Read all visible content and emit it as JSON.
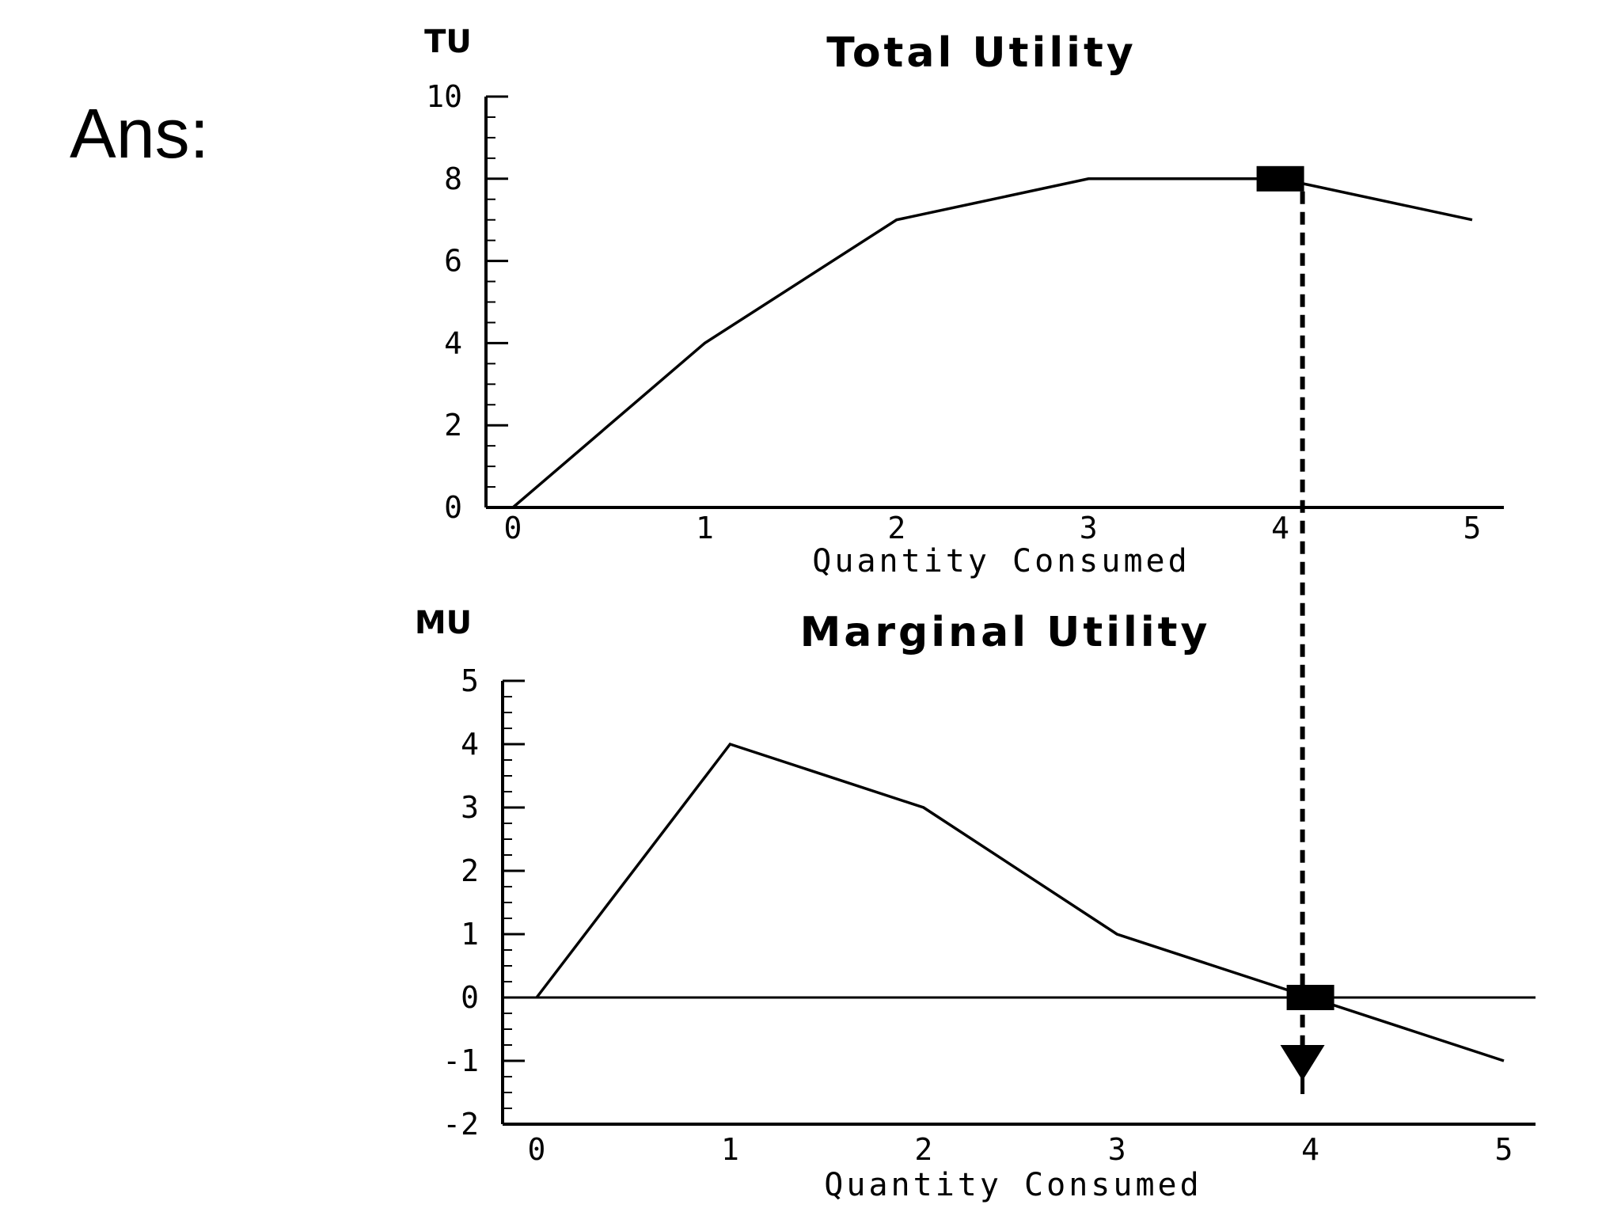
{
  "slide": {
    "label": "Ans:"
  },
  "chart_data": [
    {
      "type": "line",
      "title": "Total Utility",
      "ylabel": "TU",
      "xlabel": "Quantity Consumed",
      "x": [
        0,
        1,
        2,
        3,
        4,
        5
      ],
      "series": [
        {
          "values": [
            0,
            4,
            7,
            8,
            8,
            7
          ]
        }
      ],
      "xlim": [
        0,
        5
      ],
      "ylim": [
        0,
        10
      ],
      "yticks": [
        0,
        2,
        4,
        6,
        8,
        10
      ],
      "xticks": [
        0,
        1,
        2,
        3,
        4,
        5
      ],
      "highlight": {
        "x": 4,
        "y": 8,
        "marker": "square"
      },
      "grid": false,
      "line_color": "#000000"
    },
    {
      "type": "line",
      "title": "Marginal Utility",
      "ylabel": "MU",
      "xlabel": "Quantity Consumed",
      "x": [
        0,
        1,
        2,
        3,
        4,
        5
      ],
      "series": [
        {
          "values": [
            0,
            4,
            3,
            1,
            0,
            -1
          ]
        }
      ],
      "xlim": [
        0,
        5
      ],
      "ylim": [
        -2,
        5
      ],
      "yticks": [
        -2,
        -1,
        0,
        1,
        2,
        3,
        4,
        5
      ],
      "xticks": [
        0,
        1,
        2,
        3,
        4,
        5
      ],
      "zero_line": true,
      "highlight": {
        "x": 4,
        "y": 0,
        "marker": "square"
      },
      "grid": false,
      "line_color": "#000000"
    }
  ],
  "connector": {
    "style": "dashed",
    "x": 4,
    "arrow": "down"
  }
}
